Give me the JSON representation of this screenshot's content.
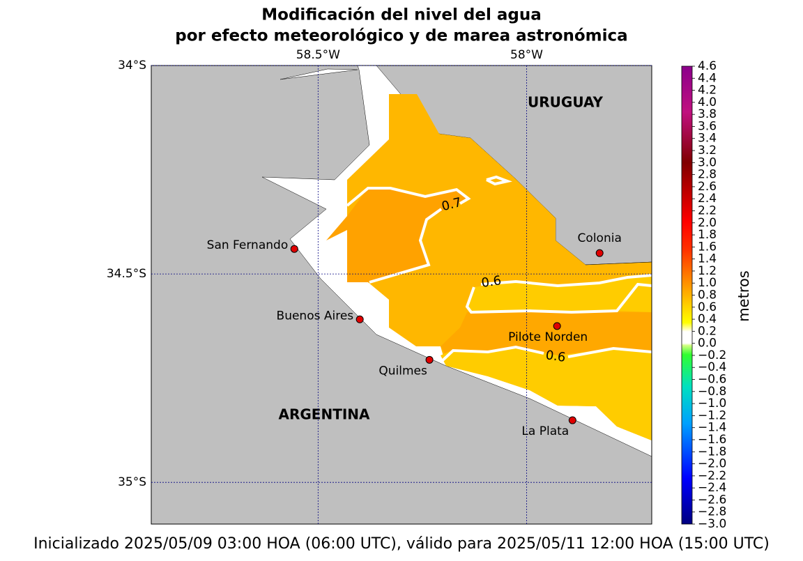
{
  "chart_data": {
    "type": "map",
    "title": [
      "Modificación del nivel del agua",
      "por efecto meteorológico y de marea astronómica"
    ],
    "xlim": [
      -58.9,
      -57.7
    ],
    "ylim": [
      -35.1,
      -34.0
    ],
    "xticks": [
      {
        "value": -58.5,
        "label": "58.5°W"
      },
      {
        "value": -58,
        "label": "58°W"
      }
    ],
    "yticks": [
      {
        "value": -34,
        "label": "34°S"
      },
      {
        "value": -34.5,
        "label": "34.5°S"
      },
      {
        "value": -35,
        "label": "35°S"
      }
    ],
    "grid": true,
    "countries": [
      "URUGUAY",
      "ARGENTINA"
    ],
    "cities": [
      {
        "name": "San Fernando",
        "lon": -58.557,
        "lat": -34.44
      },
      {
        "name": "Buenos Aires",
        "lon": -58.4,
        "lat": -34.609
      },
      {
        "name": "Quilmes",
        "lon": -58.233,
        "lat": -34.706
      },
      {
        "name": "Pilote Norden",
        "lon": -57.927,
        "lat": -34.625
      },
      {
        "name": "La Plata",
        "lon": -57.89,
        "lat": -34.851
      },
      {
        "name": "Colonia",
        "lon": -57.825,
        "lat": -34.45
      }
    ],
    "contour_labels": [
      0.7,
      0.6,
      0.6
    ],
    "colorbar": {
      "label": "metros",
      "lim": [
        -3.0,
        4.6
      ],
      "ticks": [
        4.6,
        4.4,
        4.2,
        {
          "value": 4,
          "label": "4.0"
        },
        3.8,
        3.6,
        3.4,
        3.2,
        {
          "value": 3,
          "label": "3.0"
        },
        2.8,
        2.6,
        2.4,
        2.2,
        {
          "value": 2,
          "label": "2.0"
        },
        1.8,
        1.6,
        1.4,
        1.2,
        {
          "value": 1,
          "label": "1.0"
        },
        0.8,
        0.6,
        0.4,
        0.2,
        {
          "value": 0,
          "label": "0.0"
        },
        {
          "value": -0.2,
          "label": "−0.2"
        },
        {
          "value": -0.4,
          "label": "−0.4"
        },
        {
          "value": -0.6,
          "label": "−0.6"
        },
        {
          "value": -0.8,
          "label": "−0.8"
        },
        {
          "value": -1,
          "label": "−1.0"
        },
        {
          "value": -1.2,
          "label": "−1.2"
        },
        {
          "value": -1.4,
          "label": "−1.4"
        },
        {
          "value": -1.6,
          "label": "−1.6"
        },
        {
          "value": -1.8,
          "label": "−1.8"
        },
        {
          "value": -2,
          "label": "−2.0"
        },
        {
          "value": -2.2,
          "label": "−2.2"
        },
        {
          "value": -2.4,
          "label": "−2.4"
        },
        {
          "value": -2.6,
          "label": "−2.6"
        },
        {
          "value": -2.8,
          "label": "−2.8"
        },
        {
          "value": -3,
          "label": "−3.0"
        }
      ]
    },
    "footer": "Inicializado 2025/05/09 03:00 HOA (06:00 UTC), válido para 2025/05/11 12:00 HOA (15:00 UTC)"
  }
}
